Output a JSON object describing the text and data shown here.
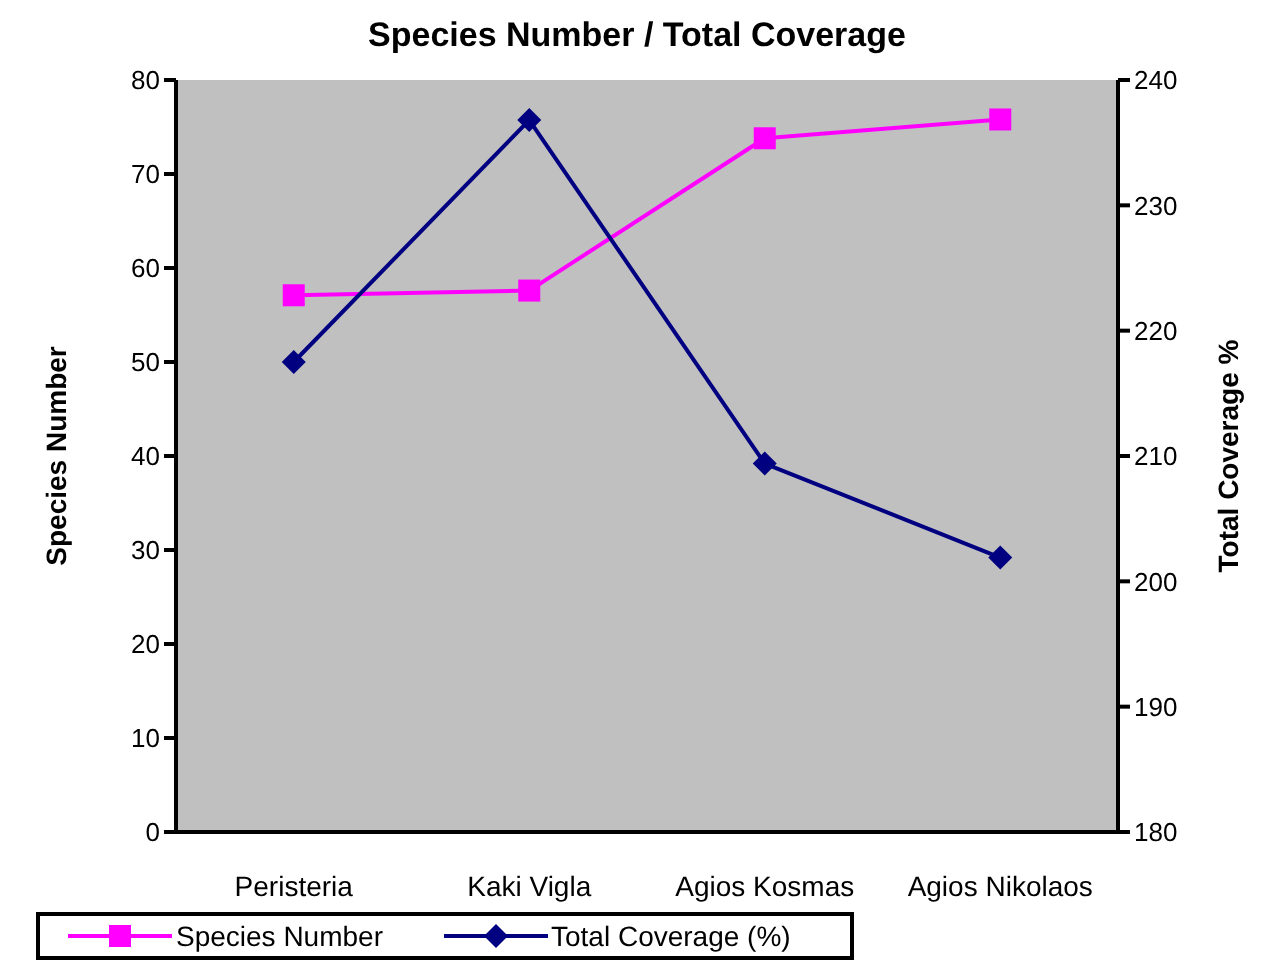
{
  "chart_data": {
    "type": "line",
    "title": "Species Number / Total Coverage",
    "ylabel": "Species Number",
    "y2label": "Total Coverage %",
    "categories": [
      "Peristeria",
      "Kaki Vigla",
      "Agios Kosmas",
      "Agios Nikolaos"
    ],
    "series": [
      {
        "name": "Species Number",
        "color": "#ff00ff",
        "marker": "square",
        "values": [
          57.1,
          57.6,
          73.8,
          75.8
        ]
      },
      {
        "name": "Total Coverage (%)",
        "color": "#000080",
        "marker": "diamond",
        "axis": "y2",
        "values": [
          217.5,
          236.8,
          209.4,
          201.9
        ]
      }
    ],
    "ylim": [
      0,
      80
    ],
    "yticks": [
      0,
      10,
      20,
      30,
      40,
      50,
      60,
      70,
      80
    ],
    "y2lim": [
      180,
      240
    ],
    "y2ticks": [
      180,
      190,
      200,
      210,
      220,
      230,
      240
    ],
    "grid": false,
    "legend": "bottom"
  }
}
